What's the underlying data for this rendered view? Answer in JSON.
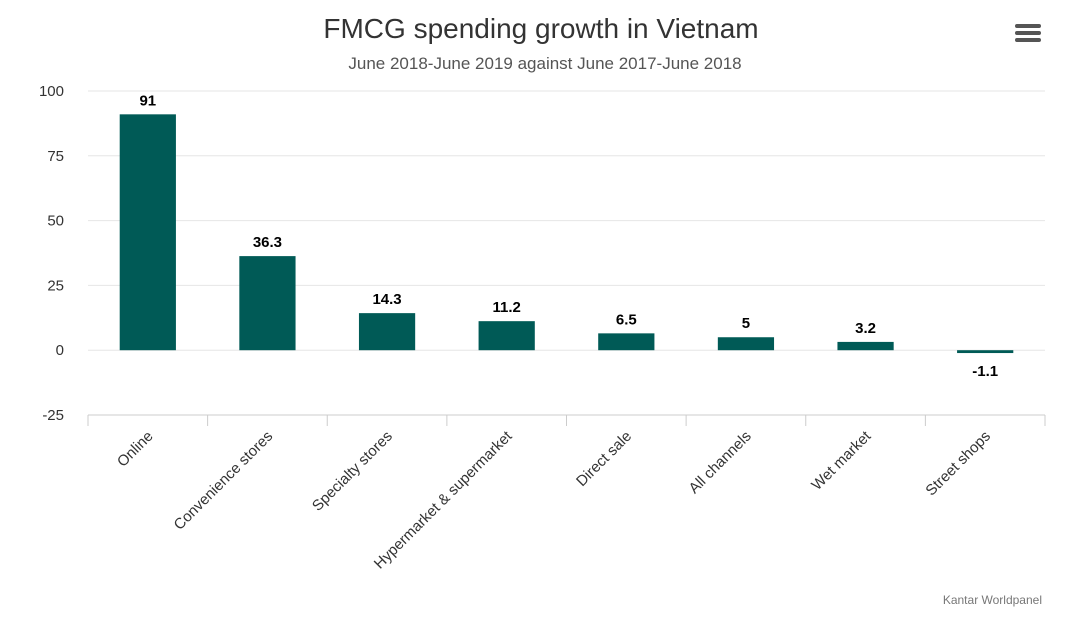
{
  "chart_data": {
    "type": "bar",
    "title": "FMCG spending growth in Vietnam",
    "subtitle": "June 2018-June 2019 against June 2017-June 2018",
    "categories": [
      "Online",
      "Convenience stores",
      "Specialty stores",
      "Hypermarket & supermarket",
      "Direct sale",
      "All channels",
      "Wet market",
      "Street shops"
    ],
    "values": [
      91,
      36.3,
      14.3,
      11.2,
      6.5,
      5,
      3.2,
      -1.1
    ],
    "data_labels": [
      "91",
      "36.3",
      "14.3",
      "11.2",
      "6.5",
      "5",
      "3.2",
      "-1.1"
    ],
    "ylim": [
      -25,
      100
    ],
    "yticks": [
      -25,
      0,
      25,
      50,
      75,
      100
    ],
    "xlabel": "",
    "ylabel": "",
    "grid": true,
    "legend": false,
    "bar_color": "#005a56",
    "credits": "Kantar Worldpanel"
  },
  "menu": {
    "icon": "hamburger-menu-icon"
  }
}
